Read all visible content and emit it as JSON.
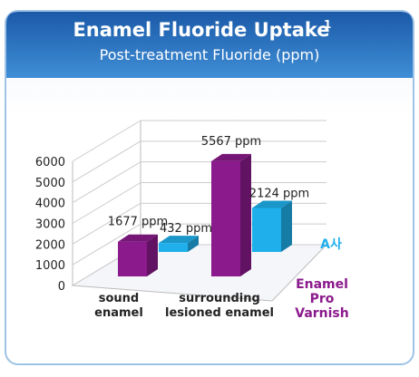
{
  "chart_data": {
    "type": "bar3d",
    "title": "Enamel Fluoride Uptake",
    "title_superscript": "1",
    "subtitle": "Post-treatment Fluoride (ppm)",
    "categories": [
      "sound enamel",
      "surrounding lesioned enamel"
    ],
    "series": [
      {
        "name": "Enamel Pro Varnish",
        "color": "#8b1a8c",
        "values": [
          1677,
          5567
        ],
        "value_labels": [
          "1677 ppm",
          "5567 ppm"
        ]
      },
      {
        "name": "A사",
        "color": "#1fb0ec",
        "values": [
          432,
          2124
        ],
        "value_labels": [
          "432 ppm",
          "2124 ppm"
        ]
      }
    ],
    "ylim": [
      0,
      6000
    ],
    "yticks": [
      0,
      1000,
      2000,
      3000,
      4000,
      5000,
      6000
    ],
    "grid": true
  }
}
